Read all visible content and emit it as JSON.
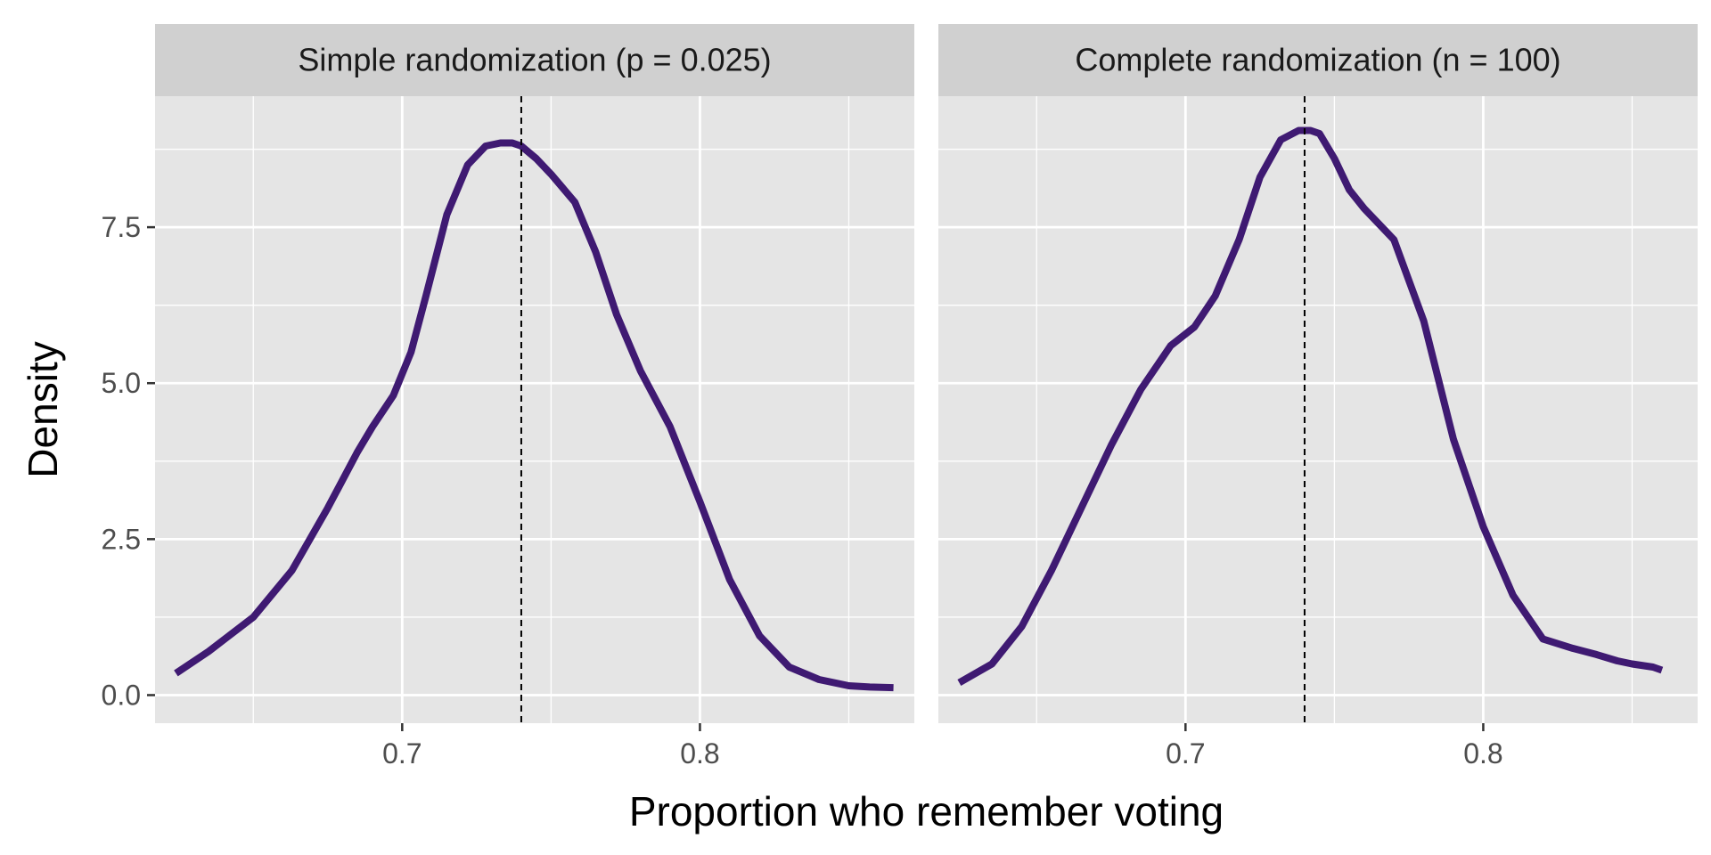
{
  "chart_data": {
    "type": "line",
    "subtype": "density-facets",
    "xlabel": "Proportion who remember voting",
    "ylabel": "Density",
    "x_ticks": [
      "0.7",
      "0.8"
    ],
    "x_tick_values": [
      0.7,
      0.8
    ],
    "y_ticks": [
      "0.0",
      "2.5",
      "5.0",
      "7.5"
    ],
    "y_tick_values": [
      0.0,
      2.5,
      5.0,
      7.5
    ],
    "xlim": [
      0.617,
      0.872
    ],
    "ylim": [
      -0.45,
      9.6
    ],
    "grid": true,
    "line_color": "#3f1a72",
    "reference_line_color": "#000000",
    "panel_background": "#e5e5e5",
    "strip_background": "#d0d0d0",
    "panels": [
      {
        "title": "Simple randomization (p = 0.025)",
        "reference_x": 0.74,
        "series": {
          "x": [
            0.624,
            0.635,
            0.65,
            0.663,
            0.675,
            0.685,
            0.69,
            0.697,
            0.703,
            0.708,
            0.715,
            0.722,
            0.728,
            0.733,
            0.737,
            0.74,
            0.745,
            0.75,
            0.758,
            0.765,
            0.772,
            0.78,
            0.79,
            0.8,
            0.81,
            0.82,
            0.83,
            0.84,
            0.85,
            0.857,
            0.865
          ],
          "y": [
            0.35,
            0.7,
            1.25,
            2.0,
            3.0,
            3.9,
            4.3,
            4.8,
            5.5,
            6.4,
            7.7,
            8.5,
            8.8,
            8.85,
            8.85,
            8.8,
            8.6,
            8.35,
            7.9,
            7.1,
            6.1,
            5.2,
            4.3,
            3.1,
            1.85,
            0.95,
            0.45,
            0.25,
            0.15,
            0.13,
            0.12
          ]
        }
      },
      {
        "title": "Complete randomization (n = 100)",
        "reference_x": 0.74,
        "series": {
          "x": [
            0.624,
            0.635,
            0.645,
            0.655,
            0.665,
            0.675,
            0.685,
            0.695,
            0.703,
            0.71,
            0.718,
            0.725,
            0.732,
            0.738,
            0.742,
            0.745,
            0.75,
            0.755,
            0.76,
            0.77,
            0.78,
            0.79,
            0.8,
            0.81,
            0.82,
            0.83,
            0.838,
            0.845,
            0.85,
            0.857,
            0.86
          ],
          "y": [
            0.2,
            0.5,
            1.1,
            2.0,
            3.0,
            4.0,
            4.9,
            5.6,
            5.9,
            6.4,
            7.3,
            8.3,
            8.9,
            9.05,
            9.05,
            9.0,
            8.6,
            8.1,
            7.8,
            7.3,
            6.0,
            4.1,
            2.7,
            1.6,
            0.9,
            0.75,
            0.65,
            0.55,
            0.5,
            0.45,
            0.4
          ]
        }
      }
    ]
  }
}
